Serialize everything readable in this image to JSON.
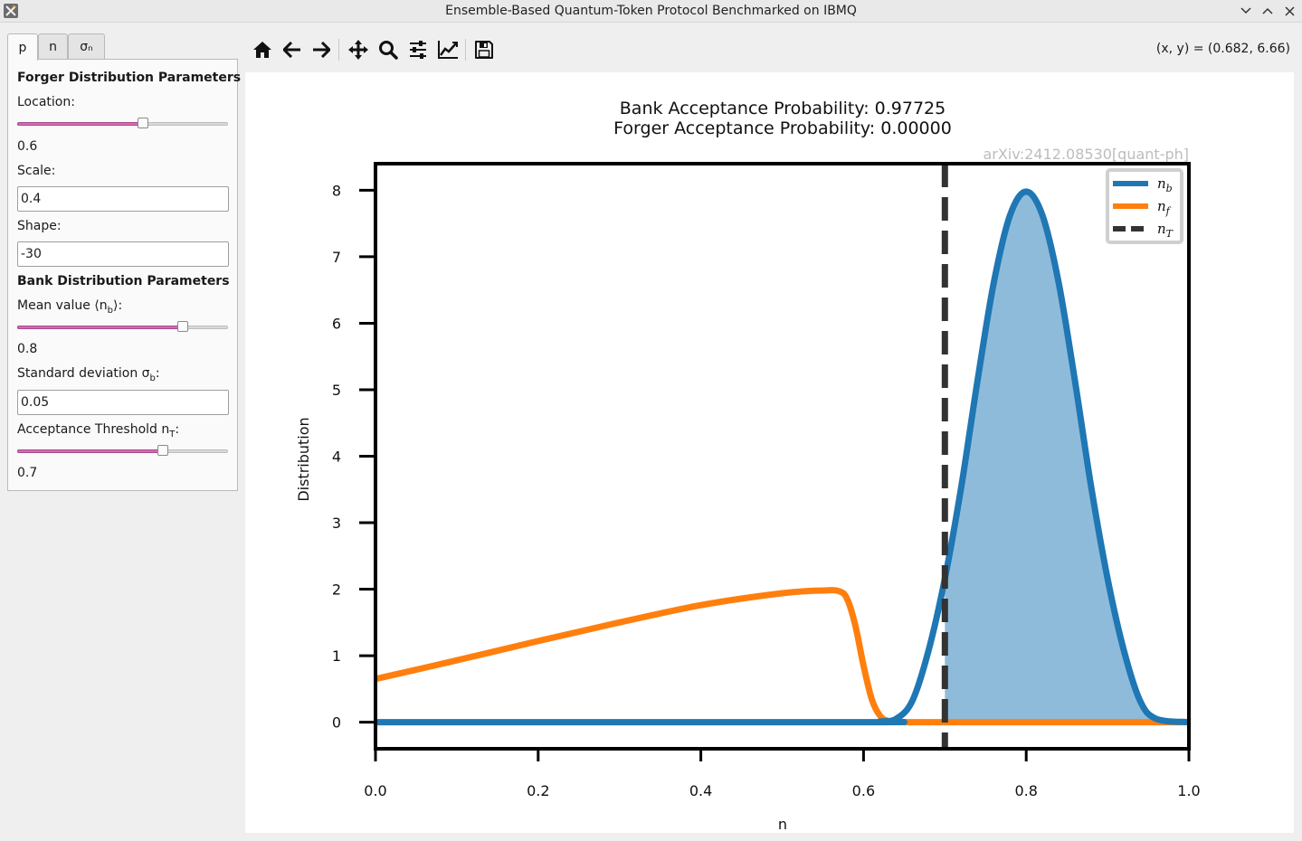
{
  "window": {
    "title": "Ensemble-Based Quantum-Token Protocol Benchmarked on IBMQ"
  },
  "tabs": [
    {
      "label": "p",
      "active": true
    },
    {
      "label": "n",
      "active": false
    },
    {
      "label": "σₙ",
      "active": false
    }
  ],
  "panel": {
    "forger_header": "Forger Distribution Parameters",
    "location_label": "Location:",
    "location_value": "0.6",
    "location_slider_fraction": 0.6,
    "scale_label": "Scale:",
    "scale_value": "0.4",
    "shape_label": "Shape:",
    "shape_value": "-30",
    "bank_header": "Bank Distribution Parameters",
    "mean_label": "Mean value ⟨nb⟩:",
    "mean_value": "0.8",
    "mean_slider_fraction": 0.8,
    "std_label": "Standard deviation σb:",
    "std_value": "0.05",
    "threshold_label": "Acceptance Threshold nT:",
    "threshold_value": "0.7",
    "threshold_slider_fraction": 0.7
  },
  "toolbar": {
    "icons": [
      "home-icon",
      "back-arrow-icon",
      "forward-arrow-icon",
      "pan-icon",
      "zoom-icon",
      "configure-subplots-icon",
      "edit-axis-icon",
      "save-icon"
    ],
    "coords": "(x, y) = (0.682, 6.66)"
  },
  "figure": {
    "title_line1": "Bank Acceptance Probability: 0.97725",
    "title_line2": "Forger Acceptance Probability: 0.00000",
    "watermark": "arXiv:2412.08530[quant-ph]"
  },
  "chart_data": {
    "type": "line",
    "xlabel": "n",
    "ylabel": "Distribution",
    "xlim": [
      0.0,
      1.0
    ],
    "ylim": [
      -0.4,
      8.4
    ],
    "xticks": [
      0.0,
      0.2,
      0.4,
      0.6,
      0.8,
      1.0
    ],
    "xtick_labels": [
      "0.0",
      "0.2",
      "0.4",
      "0.6",
      "0.8",
      "1.0"
    ],
    "yticks": [
      0,
      1,
      2,
      3,
      4,
      5,
      6,
      7,
      8
    ],
    "ytick_labels": [
      "0",
      "1",
      "2",
      "3",
      "4",
      "5",
      "6",
      "7",
      "8"
    ],
    "legend_position": "top-right",
    "series": [
      {
        "name": "n_b",
        "legend": "nb",
        "color": "#1f77b4",
        "x": [
          0.0,
          0.6,
          0.62,
          0.64,
          0.66,
          0.68,
          0.7,
          0.72,
          0.74,
          0.76,
          0.78,
          0.8,
          0.82,
          0.84,
          0.86,
          0.88,
          0.9,
          0.92,
          0.94,
          0.96,
          1.0
        ],
        "y": [
          0.0,
          0.0,
          0.01,
          0.05,
          0.32,
          1.08,
          2.16,
          3.53,
          5.13,
          6.6,
          7.62,
          7.98,
          7.62,
          6.6,
          5.13,
          3.53,
          2.16,
          1.08,
          0.32,
          0.05,
          0.0
        ]
      },
      {
        "name": "n_f",
        "legend": "nf",
        "color": "#ff7f0e",
        "x": [
          0.0,
          0.1,
          0.2,
          0.3,
          0.4,
          0.5,
          0.55,
          0.57,
          0.58,
          0.59,
          0.6,
          0.61,
          0.62,
          0.63,
          0.65,
          0.7,
          1.0
        ],
        "y": [
          0.65,
          0.93,
          1.22,
          1.5,
          1.76,
          1.94,
          1.98,
          1.97,
          1.85,
          1.45,
          0.85,
          0.35,
          0.1,
          0.02,
          0.0,
          0.0,
          0.0
        ]
      }
    ],
    "threshold": {
      "name": "n_T",
      "legend": "nT",
      "x": 0.7,
      "color": "#333333"
    },
    "shaded_region": {
      "x_from": 0.7,
      "x_to": 1.0,
      "series": "n_b",
      "color": "#8fbbdb"
    }
  }
}
